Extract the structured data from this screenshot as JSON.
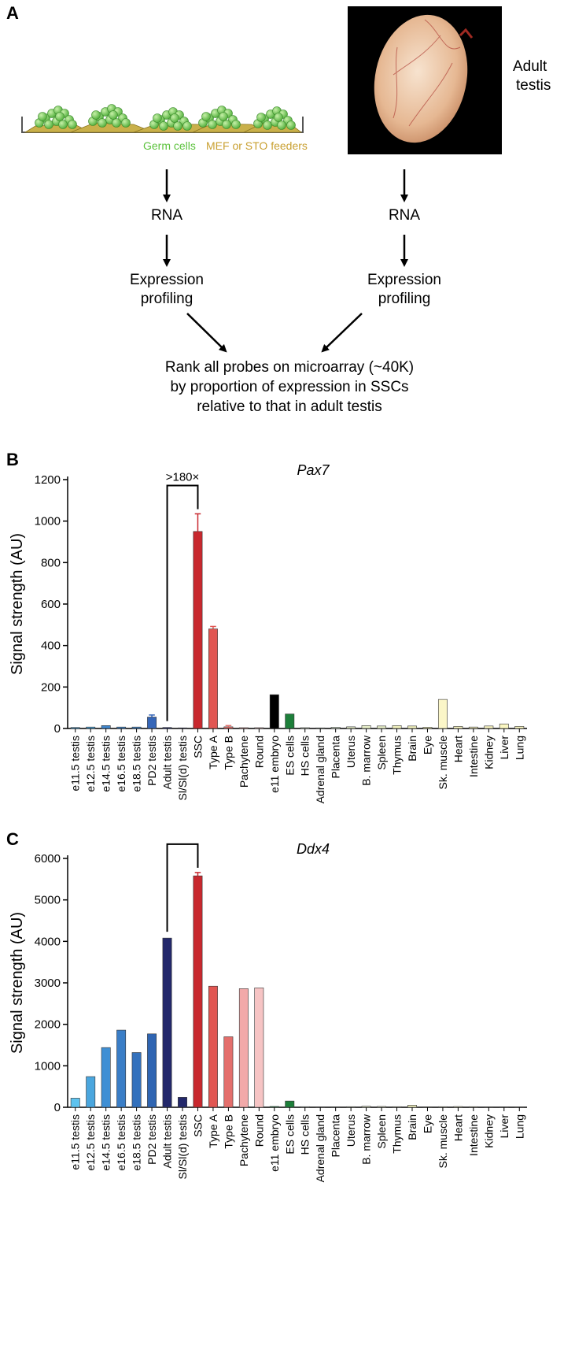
{
  "panelA": {
    "letter": "A",
    "germ_label": "Germ cells",
    "feeder_label": "MEF or STO feeders",
    "testis_label_1": "Adult",
    "testis_label_2": "testis",
    "left_rna": "RNA",
    "right_rna": "RNA",
    "left_expr_1": "Expression",
    "left_expr_2": "profiling",
    "right_expr_1": "Expression",
    "right_expr_2": "profiling",
    "rank_1": "Rank all probes on microarray (~40K)",
    "rank_2": "by proportion of expression in SSCs",
    "rank_3": "relative to that in adult testis"
  },
  "chart_data": [
    {
      "panel": "B",
      "type": "bar",
      "title": "Pax7",
      "ylabel": "Signal strength (AU)",
      "ylim": [
        0,
        1200
      ],
      "yticks": [
        0,
        200,
        400,
        600,
        800,
        1000,
        1200
      ],
      "annotation": ">180×",
      "bracket": [
        "Adult testis",
        "SSC"
      ],
      "categories": [
        "e11.5 testis",
        "e12.5 testis",
        "e14.5 testis",
        "e16.5 testis",
        "e18.5 testis",
        "PD2 testis",
        "Adult testis",
        "Sl/Sl(d) testis",
        "SSC",
        "Type A",
        "Type B",
        "Pachytene",
        "Round",
        "e11 embryo",
        "ES cells",
        "HS cells",
        "Adrenal gland",
        "Placenta",
        "Uterus",
        "B. marrow",
        "Spleen",
        "Thymus",
        "Brain",
        "Eye",
        "Sk. muscle",
        "Heart",
        "Intestine",
        "Kidney",
        "Liver",
        "Lung"
      ],
      "values": [
        5,
        7,
        14,
        7,
        7,
        55,
        5,
        3,
        950,
        480,
        8,
        4,
        4,
        163,
        70,
        4,
        3,
        6,
        8,
        14,
        12,
        14,
        12,
        6,
        140,
        10,
        7,
        12,
        22,
        10
      ],
      "errors": [
        0,
        0,
        0,
        0,
        0,
        10,
        0,
        0,
        85,
        12,
        6,
        0,
        0,
        0,
        0,
        0,
        0,
        0,
        0,
        0,
        0,
        0,
        0,
        0,
        0,
        0,
        0,
        0,
        0,
        0
      ],
      "colors": [
        "#4aa6de",
        "#4aa6de",
        "#3f86cc",
        "#3f86cc",
        "#3f86cc",
        "#3566b8",
        "#2a3580",
        "#23286b",
        "#c8282e",
        "#e15652",
        "#e46f6c",
        "#f2a9a9",
        "#f6c4c4",
        "#000000",
        "#1d7f3a",
        "#dcecd6",
        "#dcecd6",
        "#dcecd6",
        "#e6edc8",
        "#e6edc8",
        "#e6edc8",
        "#eeeebc",
        "#eeeebc",
        "#f2f0b8",
        "#fbf6c8",
        "#f6f2c0",
        "#f6f2c0",
        "#f6f2c0",
        "#fbf7c2",
        "#fbf7c2"
      ]
    },
    {
      "panel": "C",
      "type": "bar",
      "title": "Ddx4",
      "ylabel": "Signal strength (AU)",
      "ylim": [
        0,
        6000
      ],
      "yticks": [
        0,
        1000,
        2000,
        3000,
        4000,
        5000,
        6000
      ],
      "bracket": [
        "Adult testis",
        "SSC"
      ],
      "categories": [
        "e11.5 testis",
        "e12.5 testis",
        "e14.5 testis",
        "e16.5 testis",
        "e18.5 testis",
        "PD2 testis",
        "Adult testis",
        "Sl/Sl(d) testis",
        "SSC",
        "Type A",
        "Type B",
        "Pachytene",
        "Round",
        "e11 embryo",
        "ES cells",
        "HS cells",
        "Adrenal gland",
        "Placenta",
        "Uterus",
        "B. marrow",
        "Spleen",
        "Thymus",
        "Brain",
        "Eye",
        "Sk. muscle",
        "Heart",
        "Intestine",
        "Kidney",
        "Liver",
        "Lung"
      ],
      "values": [
        220,
        740,
        1440,
        1860,
        1320,
        1770,
        4080,
        240,
        5580,
        2920,
        1700,
        2860,
        2880,
        20,
        150,
        15,
        10,
        12,
        15,
        25,
        20,
        15,
        50,
        12,
        15,
        18,
        15,
        12,
        12,
        10
      ],
      "errors": [
        0,
        0,
        0,
        0,
        0,
        0,
        0,
        0,
        80,
        0,
        0,
        0,
        0,
        0,
        0,
        0,
        0,
        0,
        0,
        0,
        0,
        0,
        0,
        0,
        0,
        0,
        0,
        0,
        0,
        0
      ],
      "colors": [
        "#5ec3ef",
        "#4aa6de",
        "#3f8fd4",
        "#3a7ec7",
        "#3371bd",
        "#2f65b2",
        "#23286b",
        "#23286b",
        "#c8282e",
        "#e15652",
        "#e46f6c",
        "#f2a9a9",
        "#f6c4c4",
        "#1d7f3a",
        "#1d7f3a",
        "#dcecd6",
        "#dcecd6",
        "#dcecd6",
        "#e6edc8",
        "#e6edc8",
        "#e6edc8",
        "#eeeebc",
        "#eeeebc",
        "#f2f0b8",
        "#fbf6c8",
        "#f6f2c0",
        "#f6f2c0",
        "#f6f2c0",
        "#fbf7c2",
        "#fbf7c2"
      ]
    }
  ]
}
